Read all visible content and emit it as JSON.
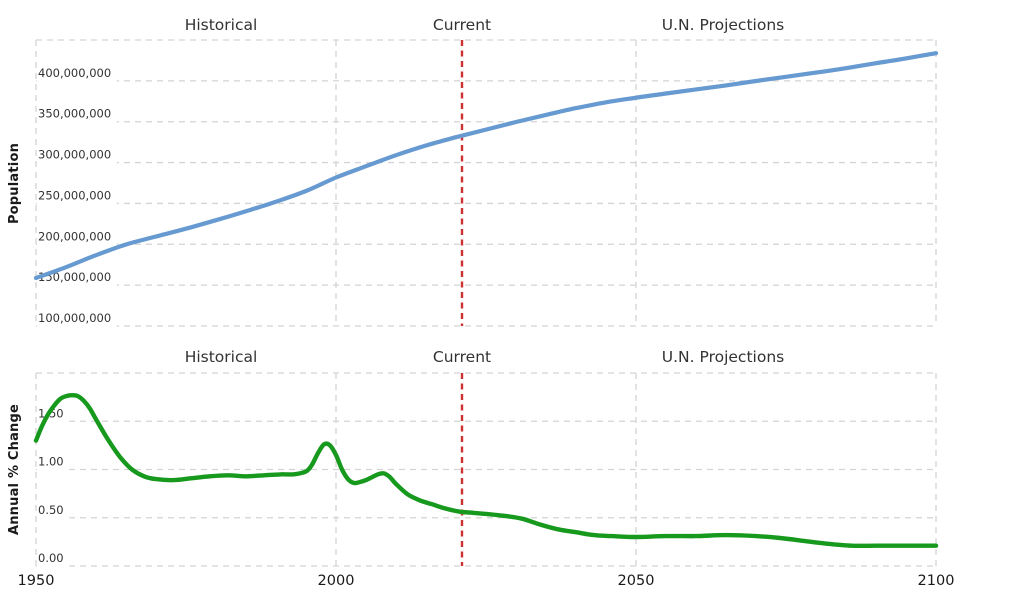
{
  "sections": {
    "historical": "Historical",
    "current": "Current",
    "projections": "U.N. Projections"
  },
  "x_axis": {
    "range": [
      1950,
      2100
    ],
    "ticks": [
      1950,
      2000,
      2050,
      2100
    ],
    "tick_labels": [
      "1950",
      "2000",
      "2050",
      "2100"
    ]
  },
  "current_marker": {
    "label": "Current",
    "year": 2021,
    "color": "#cc3232",
    "style": "dashed"
  },
  "colors": {
    "population_line": "#669ad1",
    "growth_line": "#17991d",
    "gridline": "#d4d4d4",
    "tick_text": "#333333",
    "header_text": "#333333"
  },
  "chart_data": [
    {
      "type": "line",
      "name": "population",
      "title": "",
      "ylabel": "Population",
      "legend": null,
      "grid": "dashed",
      "annotations": [
        "Historical",
        "Current",
        "U.N. Projections"
      ],
      "line_color": "#669ad1",
      "ylim": [
        100000000,
        450000000
      ],
      "yticks": [
        100000000,
        150000000,
        200000000,
        250000000,
        300000000,
        350000000,
        400000000
      ],
      "ytick_labels": [
        "100,000,000",
        "150,000,000",
        "200,000,000",
        "250,000,000",
        "300,000,000",
        "350,000,000",
        "400,000,000"
      ],
      "x": [
        1950,
        1955,
        1960,
        1965,
        1970,
        1975,
        1980,
        1985,
        1990,
        1995,
        2000,
        2005,
        2010,
        2015,
        2020,
        2025,
        2030,
        2035,
        2040,
        2045,
        2050,
        2055,
        2060,
        2065,
        2070,
        2075,
        2080,
        2085,
        2090,
        2095,
        2100
      ],
      "values": [
        158800000,
        171900000,
        186700000,
        199700000,
        209500000,
        219100000,
        229500000,
        240500000,
        252100000,
        265200000,
        281700000,
        295500000,
        309000000,
        320900000,
        331000000,
        340400000,
        349600000,
        358300000,
        366600000,
        373700000,
        379400000,
        384500000,
        389600000,
        394400000,
        399800000,
        405000000,
        410100000,
        415500000,
        421600000,
        427500000,
        433900000
      ]
    },
    {
      "type": "line",
      "name": "annual-percent-change",
      "title": "",
      "ylabel": "Annual % Change",
      "legend": null,
      "grid": "dashed",
      "annotations": [
        "Historical",
        "Current",
        "U.N. Projections"
      ],
      "line_color": "#17991d",
      "ylim": [
        0,
        2.0
      ],
      "yticks": [
        0,
        0.5,
        1.0,
        1.5
      ],
      "ytick_labels": [
        "0.00",
        "0.50",
        "1.00",
        "1.50"
      ],
      "x": [
        1950,
        1951,
        1952,
        1953,
        1954,
        1955,
        1956,
        1957,
        1958,
        1959,
        1960,
        1962,
        1964,
        1966,
        1968,
        1970,
        1973,
        1976,
        1979,
        1982,
        1985,
        1988,
        1991,
        1993,
        1995,
        1996,
        1997,
        1998,
        1999,
        2000,
        2001,
        2002,
        2003,
        2004,
        2005,
        2006,
        2007,
        2008,
        2009,
        2010,
        2012,
        2014,
        2016,
        2018,
        2020,
        2021,
        2023,
        2025,
        2028,
        2031,
        2034,
        2037,
        2040,
        2043,
        2046,
        2050,
        2055,
        2060,
        2065,
        2070,
        2074,
        2078,
        2082,
        2086,
        2090,
        2094,
        2100
      ],
      "values": [
        1.3,
        1.45,
        1.57,
        1.66,
        1.73,
        1.76,
        1.77,
        1.76,
        1.71,
        1.63,
        1.52,
        1.31,
        1.13,
        1.0,
        0.93,
        0.9,
        0.89,
        0.91,
        0.93,
        0.94,
        0.93,
        0.94,
        0.95,
        0.95,
        0.98,
        1.05,
        1.17,
        1.26,
        1.25,
        1.15,
        1.0,
        0.9,
        0.86,
        0.87,
        0.89,
        0.92,
        0.95,
        0.96,
        0.92,
        0.85,
        0.74,
        0.68,
        0.64,
        0.6,
        0.57,
        0.56,
        0.55,
        0.54,
        0.52,
        0.49,
        0.43,
        0.38,
        0.35,
        0.32,
        0.31,
        0.3,
        0.31,
        0.31,
        0.32,
        0.31,
        0.29,
        0.26,
        0.23,
        0.21,
        0.21,
        0.21,
        0.21
      ]
    }
  ]
}
